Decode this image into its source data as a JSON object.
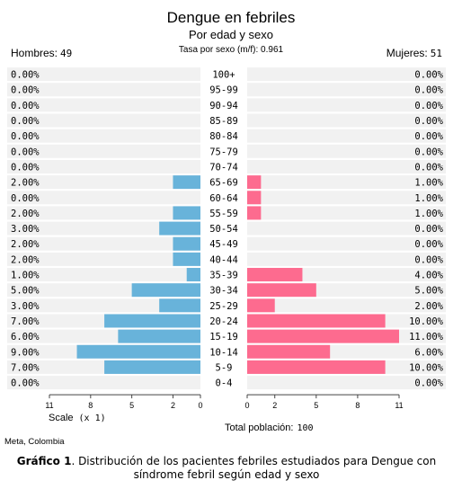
{
  "chart_data": {
    "type": "bar",
    "title": "Dengue en febriles",
    "subtitle": "Por edad y sexo",
    "ratio_text": "Tasa por sexo (m/f): 0.961",
    "left_group": {
      "label": "Hombres:",
      "total": "49",
      "color": "#68b3da"
    },
    "right_group": {
      "label": "Mujeres:",
      "total": "51",
      "color": "#fd6b8f"
    },
    "categories": [
      "100+",
      "95-99",
      "90-94",
      "85-89",
      "80-84",
      "75-79",
      "70-74",
      "65-69",
      "60-64",
      "55-59",
      "50-54",
      "45-49",
      "40-44",
      "35-39",
      "30-34",
      "25-29",
      "20-24",
      "15-19",
      "10-14",
      "5-9",
      "0-4"
    ],
    "series": [
      {
        "name": "Hombres",
        "values": [
          0,
          0,
          0,
          0,
          0,
          0,
          0,
          2,
          0,
          2,
          3,
          2,
          2,
          1,
          5,
          3,
          7,
          6,
          9,
          7,
          0
        ],
        "labels": [
          "0.00%",
          "0.00%",
          "0.00%",
          "0.00%",
          "0.00%",
          "0.00%",
          "0.00%",
          "2.00%",
          "0.00%",
          "2.00%",
          "3.00%",
          "2.00%",
          "2.00%",
          "1.00%",
          "5.00%",
          "3.00%",
          "7.00%",
          "6.00%",
          "9.00%",
          "7.00%",
          "0.00%"
        ]
      },
      {
        "name": "Mujeres",
        "values": [
          0,
          0,
          0,
          0,
          0,
          0,
          0,
          1,
          1,
          1,
          0,
          0,
          0,
          4,
          5,
          2,
          10,
          11,
          6,
          10,
          0
        ],
        "labels": [
          "0.00%",
          "0.00%",
          "0.00%",
          "0.00%",
          "0.00%",
          "0.00%",
          "0.00%",
          "1.00%",
          "1.00%",
          "1.00%",
          "0.00%",
          "0.00%",
          "0.00%",
          "4.00%",
          "5.00%",
          "2.00%",
          "10.00%",
          "11.00%",
          "6.00%",
          "10.00%",
          "0.00%"
        ]
      }
    ],
    "xlim": [
      0,
      11
    ],
    "left_ticks": [
      "11",
      "8",
      "5",
      "2",
      "0"
    ],
    "right_ticks": [
      "0",
      "2",
      "5",
      "8",
      "11"
    ],
    "scale_label": "Scale",
    "scale_value": "(x 1)",
    "total_label": "Total población:",
    "total_value": "100",
    "source": "Meta, Colombia",
    "band_color": "#f1f1f1"
  },
  "caption": {
    "label": "Gráfico 1",
    "text": ". Distribución de los pacientes febriles estudiados para Dengue con síndrome febril según edad y sexo"
  }
}
